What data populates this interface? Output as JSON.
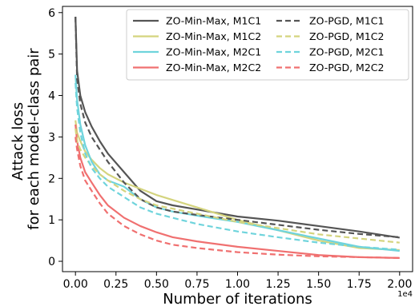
{
  "chart_data": {
    "type": "line",
    "xlabel": "Number of iterations",
    "ylabel": [
      "Attack loss",
      "for each model-class pair"
    ],
    "x_offset_label": "1e4",
    "xlim": [
      -0.08,
      2.08
    ],
    "ylim": [
      -0.25,
      6.15
    ],
    "xticks": [
      0.0,
      0.25,
      0.5,
      0.75,
      1.0,
      1.25,
      1.5,
      1.75,
      2.0
    ],
    "xtick_labels": [
      "0.00",
      "0.25",
      "0.50",
      "0.75",
      "1.00",
      "1.25",
      "1.50",
      "1.75",
      "2.00"
    ],
    "yticks": [
      0,
      1,
      2,
      3,
      4,
      5,
      6
    ],
    "ytick_labels": [
      "0",
      "1",
      "2",
      "3",
      "4",
      "5",
      "6"
    ],
    "grid": false,
    "legend": {
      "placement": "top-right",
      "ncol": 2
    },
    "series": [
      {
        "name": "ZO-Min-Max, M1C1",
        "color": "#555555",
        "dash": "solid",
        "points": [
          [
            0,
            5.9
          ],
          [
            0.01,
            4.6
          ],
          [
            0.03,
            4.0
          ],
          [
            0.06,
            3.6
          ],
          [
            0.1,
            3.25
          ],
          [
            0.15,
            2.9
          ],
          [
            0.2,
            2.6
          ],
          [
            0.3,
            2.15
          ],
          [
            0.4,
            1.7
          ],
          [
            0.5,
            1.45
          ],
          [
            0.6,
            1.35
          ],
          [
            0.75,
            1.25
          ],
          [
            1.0,
            1.08
          ],
          [
            1.25,
            0.98
          ],
          [
            1.5,
            0.85
          ],
          [
            1.75,
            0.72
          ],
          [
            2.0,
            0.57
          ]
        ]
      },
      {
        "name": "ZO-Min-Max, M1C2",
        "color": "#d4d47e",
        "dash": "solid",
        "points": [
          [
            0,
            3.4
          ],
          [
            0.01,
            3.1
          ],
          [
            0.03,
            2.9
          ],
          [
            0.06,
            2.65
          ],
          [
            0.1,
            2.45
          ],
          [
            0.15,
            2.25
          ],
          [
            0.2,
            2.1
          ],
          [
            0.3,
            1.9
          ],
          [
            0.4,
            1.75
          ],
          [
            0.5,
            1.6
          ],
          [
            0.75,
            1.3
          ],
          [
            1.0,
            1.0
          ],
          [
            1.25,
            0.75
          ],
          [
            1.5,
            0.5
          ],
          [
            1.75,
            0.32
          ],
          [
            2.0,
            0.27
          ]
        ]
      },
      {
        "name": "ZO-Min-Max, M2C1",
        "color": "#6fd4dc",
        "dash": "solid",
        "points": [
          [
            0,
            4.5
          ],
          [
            0.01,
            3.9
          ],
          [
            0.03,
            3.3
          ],
          [
            0.06,
            2.8
          ],
          [
            0.1,
            2.4
          ],
          [
            0.15,
            2.1
          ],
          [
            0.2,
            1.95
          ],
          [
            0.3,
            1.8
          ],
          [
            0.4,
            1.5
          ],
          [
            0.5,
            1.3
          ],
          [
            0.6,
            1.2
          ],
          [
            0.75,
            1.1
          ],
          [
            1.0,
            0.95
          ],
          [
            1.25,
            0.75
          ],
          [
            1.5,
            0.55
          ],
          [
            1.75,
            0.35
          ],
          [
            2.0,
            0.25
          ]
        ]
      },
      {
        "name": "ZO-Min-Max, M2C2",
        "color": "#f07070",
        "dash": "solid",
        "points": [
          [
            0,
            3.3
          ],
          [
            0.01,
            2.9
          ],
          [
            0.03,
            2.5
          ],
          [
            0.06,
            2.15
          ],
          [
            0.1,
            1.9
          ],
          [
            0.15,
            1.6
          ],
          [
            0.2,
            1.35
          ],
          [
            0.3,
            1.05
          ],
          [
            0.4,
            0.85
          ],
          [
            0.5,
            0.7
          ],
          [
            0.6,
            0.58
          ],
          [
            0.75,
            0.48
          ],
          [
            1.0,
            0.35
          ],
          [
            1.25,
            0.25
          ],
          [
            1.5,
            0.15
          ],
          [
            1.75,
            0.1
          ],
          [
            2.0,
            0.08
          ]
        ]
      },
      {
        "name": "ZO-PGD, M1C1",
        "color": "#555555",
        "dash": "dashed",
        "points": [
          [
            0,
            5.9
          ],
          [
            0.01,
            4.4
          ],
          [
            0.03,
            3.8
          ],
          [
            0.06,
            3.35
          ],
          [
            0.1,
            3.0
          ],
          [
            0.15,
            2.7
          ],
          [
            0.2,
            2.4
          ],
          [
            0.3,
            1.9
          ],
          [
            0.4,
            1.5
          ],
          [
            0.5,
            1.3
          ],
          [
            0.6,
            1.2
          ],
          [
            0.75,
            1.12
          ],
          [
            1.0,
            1.0
          ],
          [
            1.25,
            0.88
          ],
          [
            1.5,
            0.76
          ],
          [
            1.75,
            0.66
          ],
          [
            2.0,
            0.58
          ]
        ]
      },
      {
        "name": "ZO-PGD, M1C2",
        "color": "#d4d47e",
        "dash": "dashed",
        "points": [
          [
            0,
            3.2
          ],
          [
            0.01,
            2.9
          ],
          [
            0.03,
            2.7
          ],
          [
            0.06,
            2.5
          ],
          [
            0.1,
            2.3
          ],
          [
            0.15,
            2.1
          ],
          [
            0.2,
            1.95
          ],
          [
            0.3,
            1.7
          ],
          [
            0.4,
            1.5
          ],
          [
            0.5,
            1.35
          ],
          [
            0.75,
            1.15
          ],
          [
            1.0,
            0.95
          ],
          [
            1.25,
            0.8
          ],
          [
            1.5,
            0.65
          ],
          [
            1.75,
            0.55
          ],
          [
            2.0,
            0.45
          ]
        ]
      },
      {
        "name": "ZO-PGD, M2C1",
        "color": "#6fd4dc",
        "dash": "dashed",
        "points": [
          [
            0,
            4.3
          ],
          [
            0.01,
            3.7
          ],
          [
            0.03,
            3.1
          ],
          [
            0.06,
            2.6
          ],
          [
            0.1,
            2.25
          ],
          [
            0.15,
            2.0
          ],
          [
            0.2,
            1.8
          ],
          [
            0.3,
            1.55
          ],
          [
            0.4,
            1.3
          ],
          [
            0.5,
            1.15
          ],
          [
            0.6,
            1.05
          ],
          [
            0.75,
            0.9
          ],
          [
            1.0,
            0.72
          ],
          [
            1.25,
            0.58
          ],
          [
            1.5,
            0.45
          ],
          [
            1.75,
            0.35
          ],
          [
            2.0,
            0.28
          ]
        ]
      },
      {
        "name": "ZO-PGD, M2C2",
        "color": "#f07070",
        "dash": "dashed",
        "points": [
          [
            0,
            3.0
          ],
          [
            0.01,
            2.7
          ],
          [
            0.03,
            2.3
          ],
          [
            0.06,
            1.95
          ],
          [
            0.1,
            1.7
          ],
          [
            0.15,
            1.4
          ],
          [
            0.2,
            1.15
          ],
          [
            0.3,
            0.85
          ],
          [
            0.4,
            0.65
          ],
          [
            0.5,
            0.5
          ],
          [
            0.6,
            0.4
          ],
          [
            0.75,
            0.32
          ],
          [
            1.0,
            0.22
          ],
          [
            1.25,
            0.16
          ],
          [
            1.5,
            0.12
          ],
          [
            1.75,
            0.1
          ],
          [
            2.0,
            0.08
          ]
        ]
      }
    ]
  }
}
